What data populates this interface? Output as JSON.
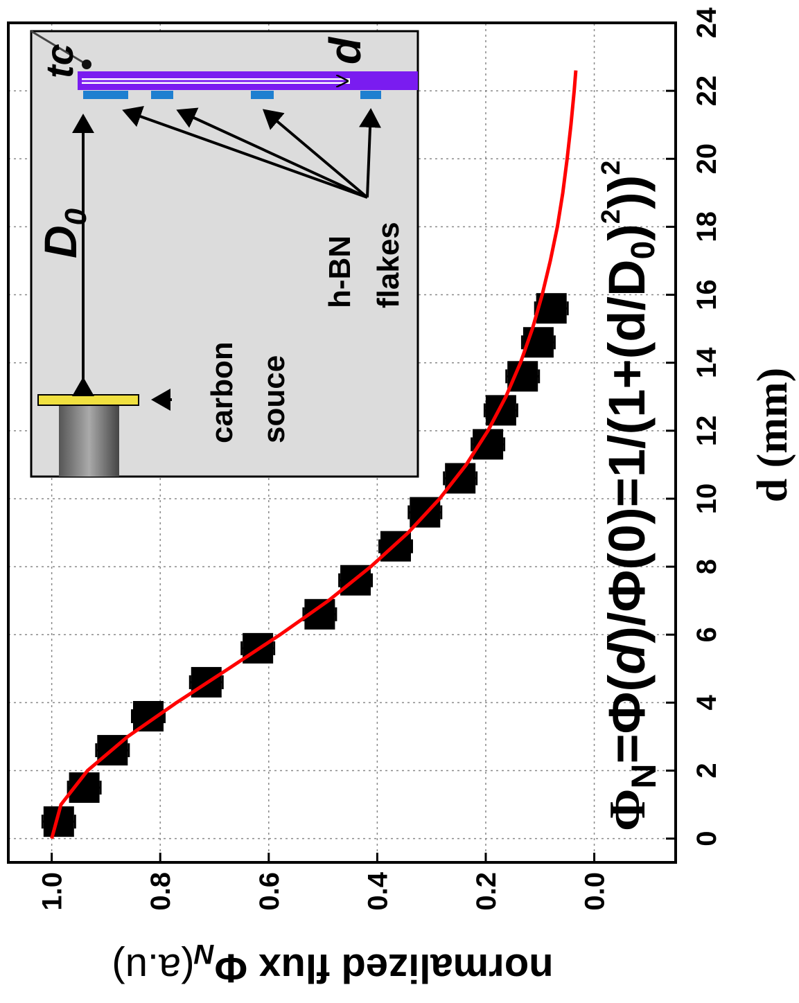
{
  "chart_data": {
    "type": "scatter-fit",
    "x_label": "d (mm)",
    "y_label": [
      "normalized flux Φ",
      "N",
      "(a.u)"
    ],
    "annotation": [
      "Φ",
      "N",
      "=Φ(",
      "d",
      ")/Φ(0)=1/(1+(d/D",
      "0",
      ")",
      "2",
      "))",
      "2"
    ],
    "xlim": [
      -0.7,
      24
    ],
    "xticks": [
      0,
      2,
      4,
      6,
      8,
      10,
      12,
      14,
      16,
      18,
      20,
      22,
      24
    ],
    "ylim": [
      -0.15,
      1.08
    ],
    "yticks": [
      {
        "value": 0,
        "label": "0.0"
      },
      0.2,
      0.4,
      0.6,
      0.8,
      {
        "value": 1,
        "label": "1.0"
      }
    ],
    "grid": true,
    "points": {
      "color": "#000000",
      "x": [
        0.5,
        1.5,
        2.6,
        3.6,
        4.6,
        5.6,
        6.6,
        7.6,
        8.6,
        9.6,
        10.6,
        11.6,
        12.6,
        13.6,
        14.6,
        15.6
      ],
      "values": [
        0.987,
        0.94,
        0.888,
        0.822,
        0.715,
        0.62,
        0.506,
        0.44,
        0.366,
        0.312,
        0.247,
        0.196,
        0.172,
        0.132,
        0.103,
        0.079
      ],
      "errors": [
        0.03,
        0.03,
        0.03,
        0.03,
        0.03,
        0.03,
        0.03,
        0.03,
        0.03,
        0.03,
        0.03,
        0.03,
        0.03,
        0.03,
        0.03,
        0.03
      ]
    },
    "curve": {
      "color": "#ff0000",
      "x": [
        0,
        1,
        2,
        3,
        4,
        5,
        6,
        7,
        8,
        9,
        10,
        11,
        12,
        13,
        14,
        15,
        16,
        17,
        18,
        19,
        20,
        21,
        22,
        22.6
      ],
      "values": [
        1,
        0.983,
        0.934,
        0.86,
        0.77,
        0.674,
        0.579,
        0.49,
        0.412,
        0.343,
        0.285,
        0.236,
        0.196,
        0.163,
        0.136,
        0.114,
        0.096,
        0.081,
        0.068,
        0.058,
        0.05,
        0.043,
        0.037,
        0.034
      ]
    },
    "inset": {
      "tc": "tc",
      "d": "d",
      "D0": [
        "D",
        "0"
      ],
      "flakes": [
        "h-BN",
        "flakes"
      ],
      "source": [
        "carbon",
        "souce"
      ]
    }
  }
}
